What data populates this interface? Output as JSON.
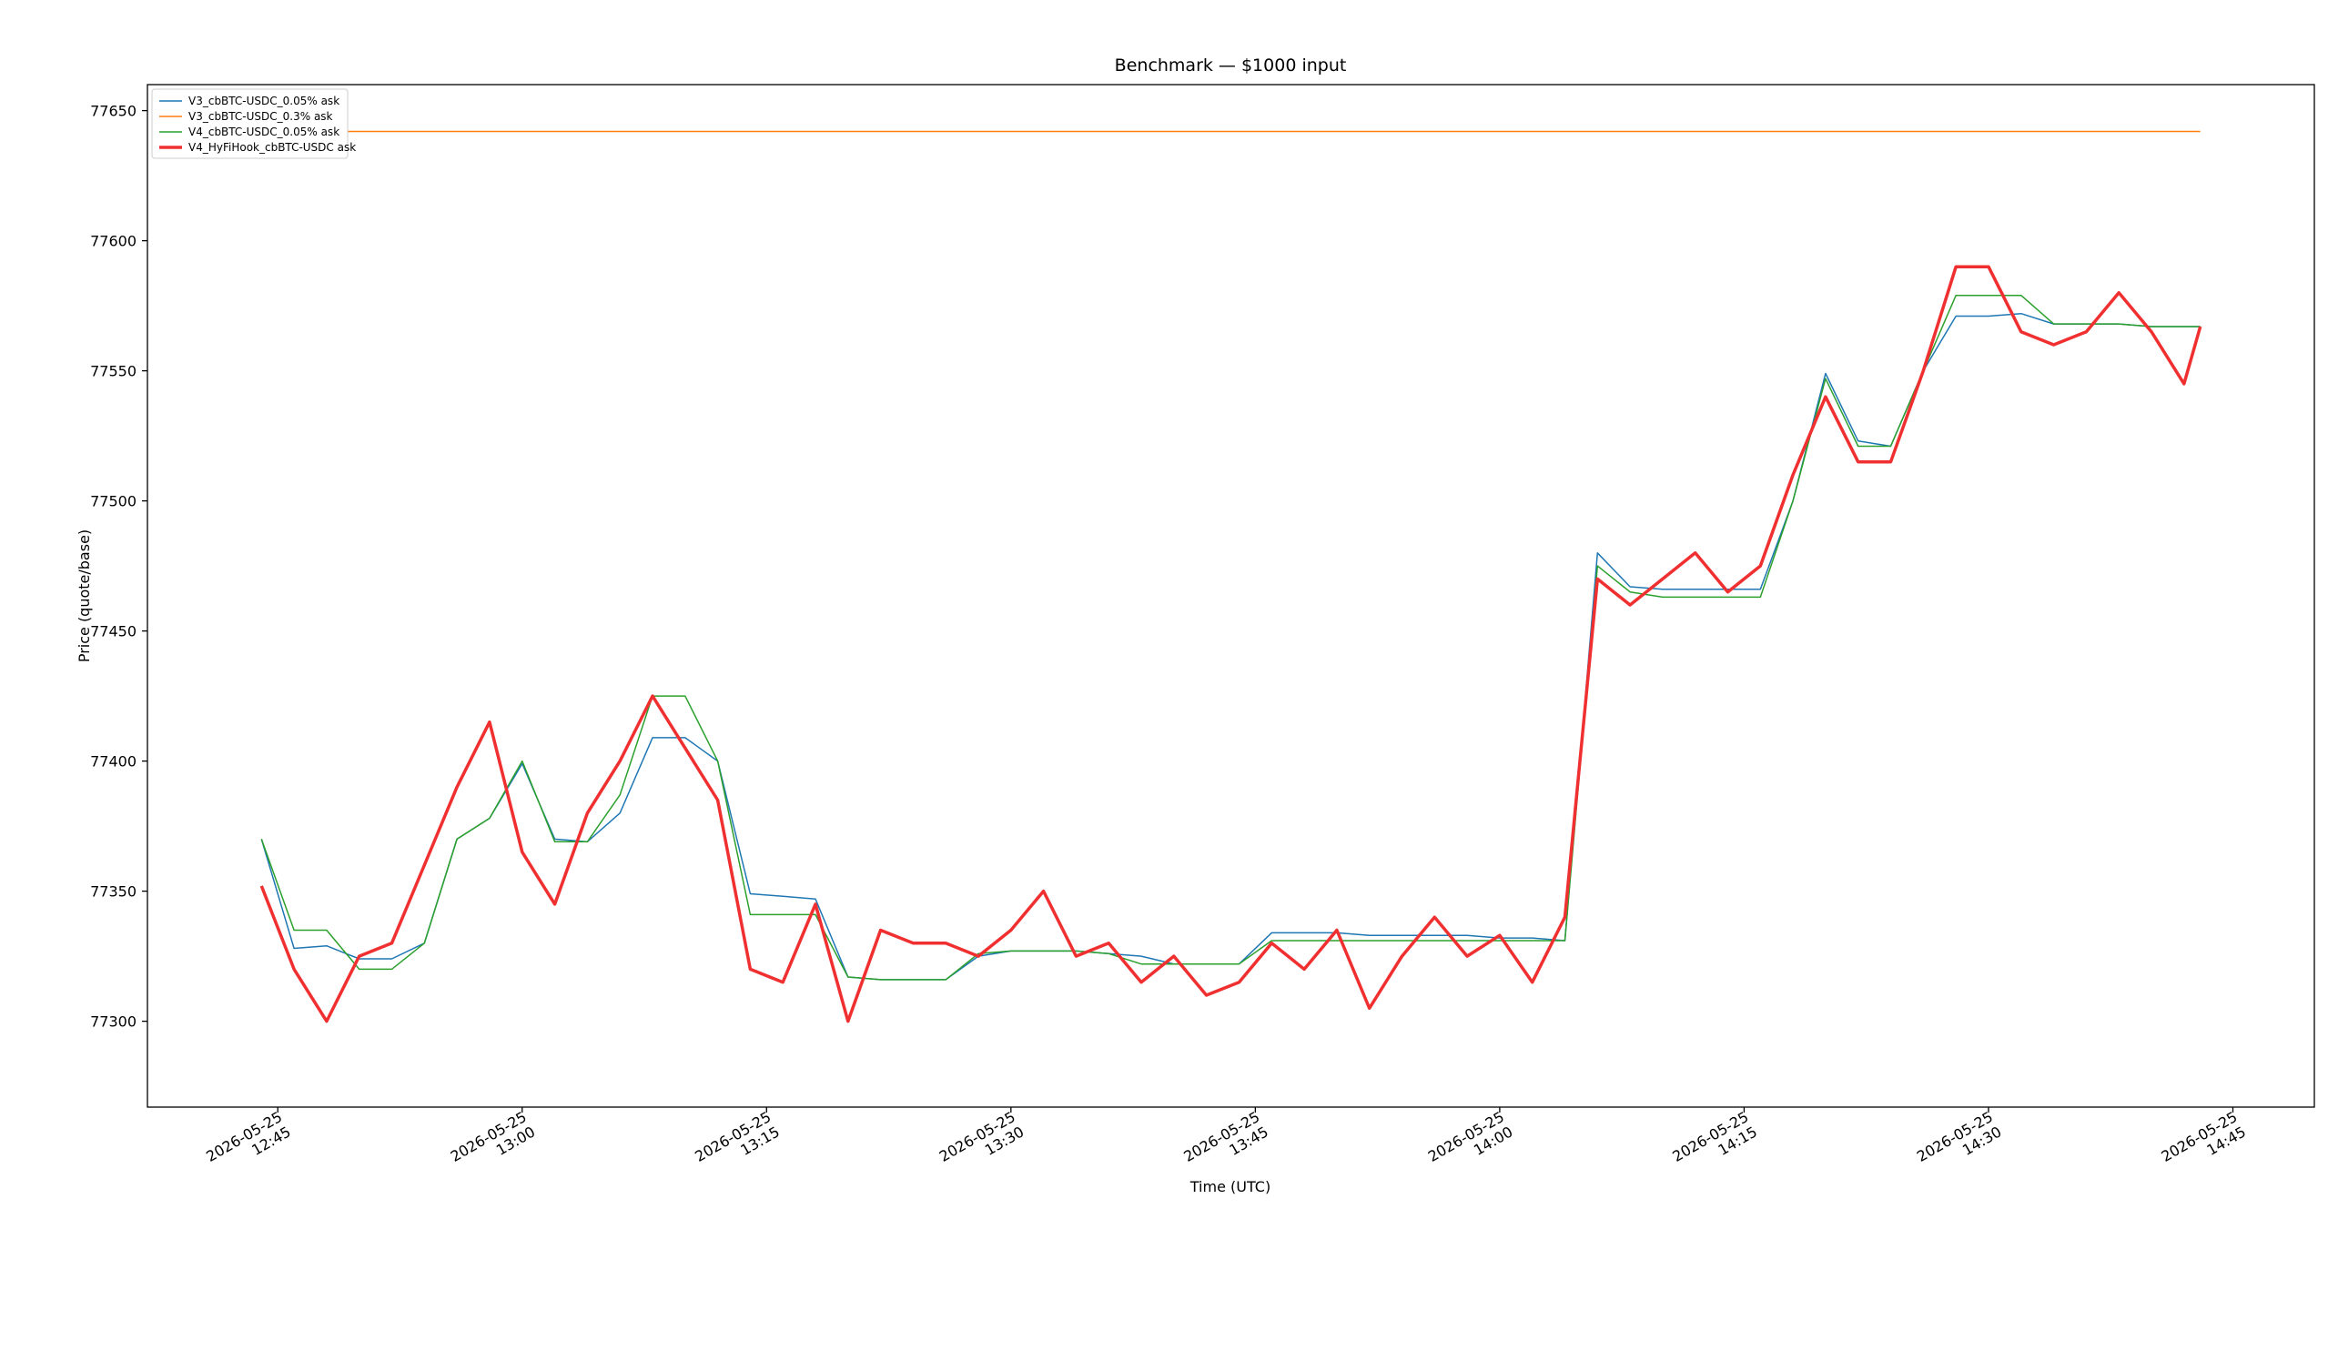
{
  "chart_data": {
    "type": "line",
    "title": "Benchmark — $1000 input",
    "x_label": "Time (UTC)",
    "y_label": "Price (quote/base)",
    "x": [
      "2026-05-25 12:44",
      "2026-05-25 12:46",
      "2026-05-25 12:48",
      "2026-05-25 12:50",
      "2026-05-25 12:52",
      "2026-05-25 12:54",
      "2026-05-25 12:56",
      "2026-05-25 12:58",
      "2026-05-25 13:00",
      "2026-05-25 13:02",
      "2026-05-25 13:04",
      "2026-05-25 13:06",
      "2026-05-25 13:08",
      "2026-05-25 13:10",
      "2026-05-25 13:12",
      "2026-05-25 13:14",
      "2026-05-25 13:16",
      "2026-05-25 13:18",
      "2026-05-25 13:20",
      "2026-05-25 13:22",
      "2026-05-25 13:24",
      "2026-05-25 13:26",
      "2026-05-25 13:28",
      "2026-05-25 13:30",
      "2026-05-25 13:32",
      "2026-05-25 13:34",
      "2026-05-25 13:36",
      "2026-05-25 13:38",
      "2026-05-25 13:40",
      "2026-05-25 13:42",
      "2026-05-25 13:44",
      "2026-05-25 13:46",
      "2026-05-25 13:48",
      "2026-05-25 13:50",
      "2026-05-25 13:52",
      "2026-05-25 13:54",
      "2026-05-25 13:56",
      "2026-05-25 13:58",
      "2026-05-25 14:00",
      "2026-05-25 14:02",
      "2026-05-25 14:04",
      "2026-05-25 14:06",
      "2026-05-25 14:08",
      "2026-05-25 14:10",
      "2026-05-25 14:12",
      "2026-05-25 14:14",
      "2026-05-25 14:16",
      "2026-05-25 14:18",
      "2026-05-25 14:20",
      "2026-05-25 14:22",
      "2026-05-25 14:24",
      "2026-05-25 14:26",
      "2026-05-25 14:28",
      "2026-05-25 14:30",
      "2026-05-25 14:32",
      "2026-05-25 14:34",
      "2026-05-25 14:36",
      "2026-05-25 14:38",
      "2026-05-25 14:40",
      "2026-05-25 14:42",
      "2026-05-25 14:43"
    ],
    "series": [
      {
        "name": "V3_cbBTC-USDC_0.05% ask",
        "color": "#1f77b4",
        "width": 1.5,
        "values": [
          77370,
          77328,
          77329,
          77324,
          77324,
          77330,
          77370,
          77378,
          77399,
          77370,
          77369,
          77380,
          77409,
          77409,
          77400,
          77349,
          77348,
          77347,
          77317,
          77316,
          77316,
          77316,
          77325,
          77327,
          77327,
          77327,
          77326,
          77325,
          77322,
          77322,
          77322,
          77334,
          77334,
          77334,
          77333,
          77333,
          77333,
          77333,
          77332,
          77332,
          77331,
          77480,
          77467,
          77466,
          77466,
          77466,
          77466,
          77500,
          77549,
          77523,
          77521,
          77550,
          77571,
          77571,
          77572,
          77568,
          77568,
          77568,
          77567,
          77567,
          77567
        ]
      },
      {
        "name": "V3_cbBTC-USDC_0.3% ask",
        "color": "#ff7f0e",
        "width": 1.5,
        "values": [
          77642,
          77642,
          77642,
          77642,
          77642,
          77642,
          77642,
          77642,
          77642,
          77642,
          77642,
          77642,
          77642,
          77642,
          77642,
          77642,
          77642,
          77642,
          77642,
          77642,
          77642,
          77642,
          77642,
          77642,
          77642,
          77642,
          77642,
          77642,
          77642,
          77642,
          77642,
          77642,
          77642,
          77642,
          77642,
          77642,
          77642,
          77642,
          77642,
          77642,
          77642,
          77642,
          77642,
          77642,
          77642,
          77642,
          77642,
          77642,
          77642,
          77642,
          77642,
          77642,
          77642,
          77642,
          77642,
          77642,
          77642,
          77642,
          77642,
          77642,
          77642
        ]
      },
      {
        "name": "V4_cbBTC-USDC_0.05% ask",
        "color": "#2ca02c",
        "width": 1.5,
        "values": [
          77370,
          77335,
          77335,
          77320,
          77320,
          77330,
          77370,
          77378,
          77400,
          77369,
          77369,
          77387,
          77425,
          77425,
          77400,
          77341,
          77341,
          77341,
          77317,
          77316,
          77316,
          77316,
          77326,
          77327,
          77327,
          77327,
          77326,
          77322,
          77322,
          77322,
          77322,
          77331,
          77331,
          77331,
          77331,
          77331,
          77331,
          77331,
          77331,
          77331,
          77331,
          77475,
          77465,
          77463,
          77463,
          77463,
          77463,
          77500,
          77547,
          77521,
          77521,
          77550,
          77579,
          77579,
          77579,
          77568,
          77568,
          77568,
          77567,
          77567,
          77567
        ]
      },
      {
        "name": "V4_HyFiHook_cbBTC-USDC ask",
        "color": "#f03030",
        "width": 3.5,
        "values": [
          77352,
          77320,
          77300,
          77325,
          77330,
          77360,
          77390,
          77415,
          77365,
          77345,
          77380,
          77400,
          77425,
          77405,
          77385,
          77320,
          77315,
          77345,
          77300,
          77335,
          77330,
          77330,
          77325,
          77335,
          77350,
          77325,
          77330,
          77315,
          77325,
          77310,
          77315,
          77330,
          77320,
          77335,
          77305,
          77325,
          77340,
          77325,
          77333,
          77315,
          77340,
          77470,
          77460,
          77470,
          77480,
          77465,
          77475,
          77510,
          77540,
          77515,
          77515,
          77550,
          77590,
          77590,
          77565,
          77560,
          77565,
          77580,
          77565,
          77545,
          77567
        ]
      }
    ],
    "xlim": [
      "2026-05-25 12:37",
      "2026-05-25 14:50"
    ],
    "xticks": [
      "2026-05-25 12:45",
      "2026-05-25 13:00",
      "2026-05-25 13:15",
      "2026-05-25 13:30",
      "2026-05-25 13:45",
      "2026-05-25 14:00",
      "2026-05-25 14:15",
      "2026-05-25 14:30",
      "2026-05-25 14:45"
    ],
    "ylim": [
      77267,
      77660
    ],
    "yticks": [
      77300,
      77350,
      77400,
      77450,
      77500,
      77550,
      77600,
      77650
    ],
    "legend": "upper left"
  }
}
